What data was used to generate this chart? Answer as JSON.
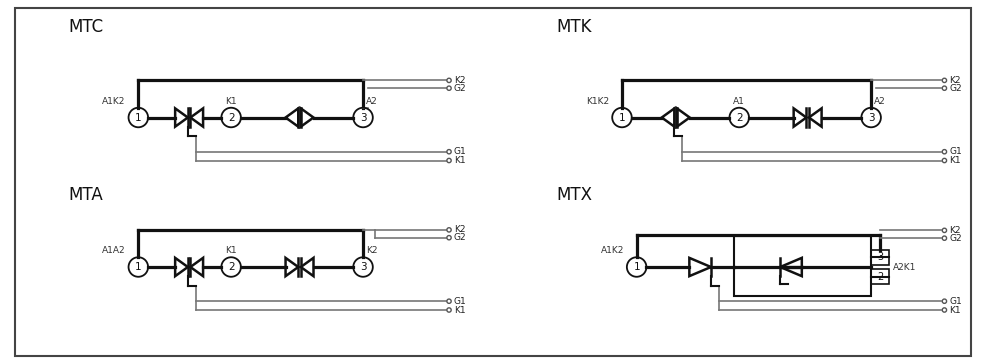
{
  "bg_color": "#ffffff",
  "border_color": "#444444",
  "lm": "#111111",
  "lt": "#777777",
  "diagrams": [
    "MTC",
    "MTK",
    "MTA",
    "MTX"
  ],
  "figsize": [
    9.86,
    3.64
  ],
  "dpi": 100
}
